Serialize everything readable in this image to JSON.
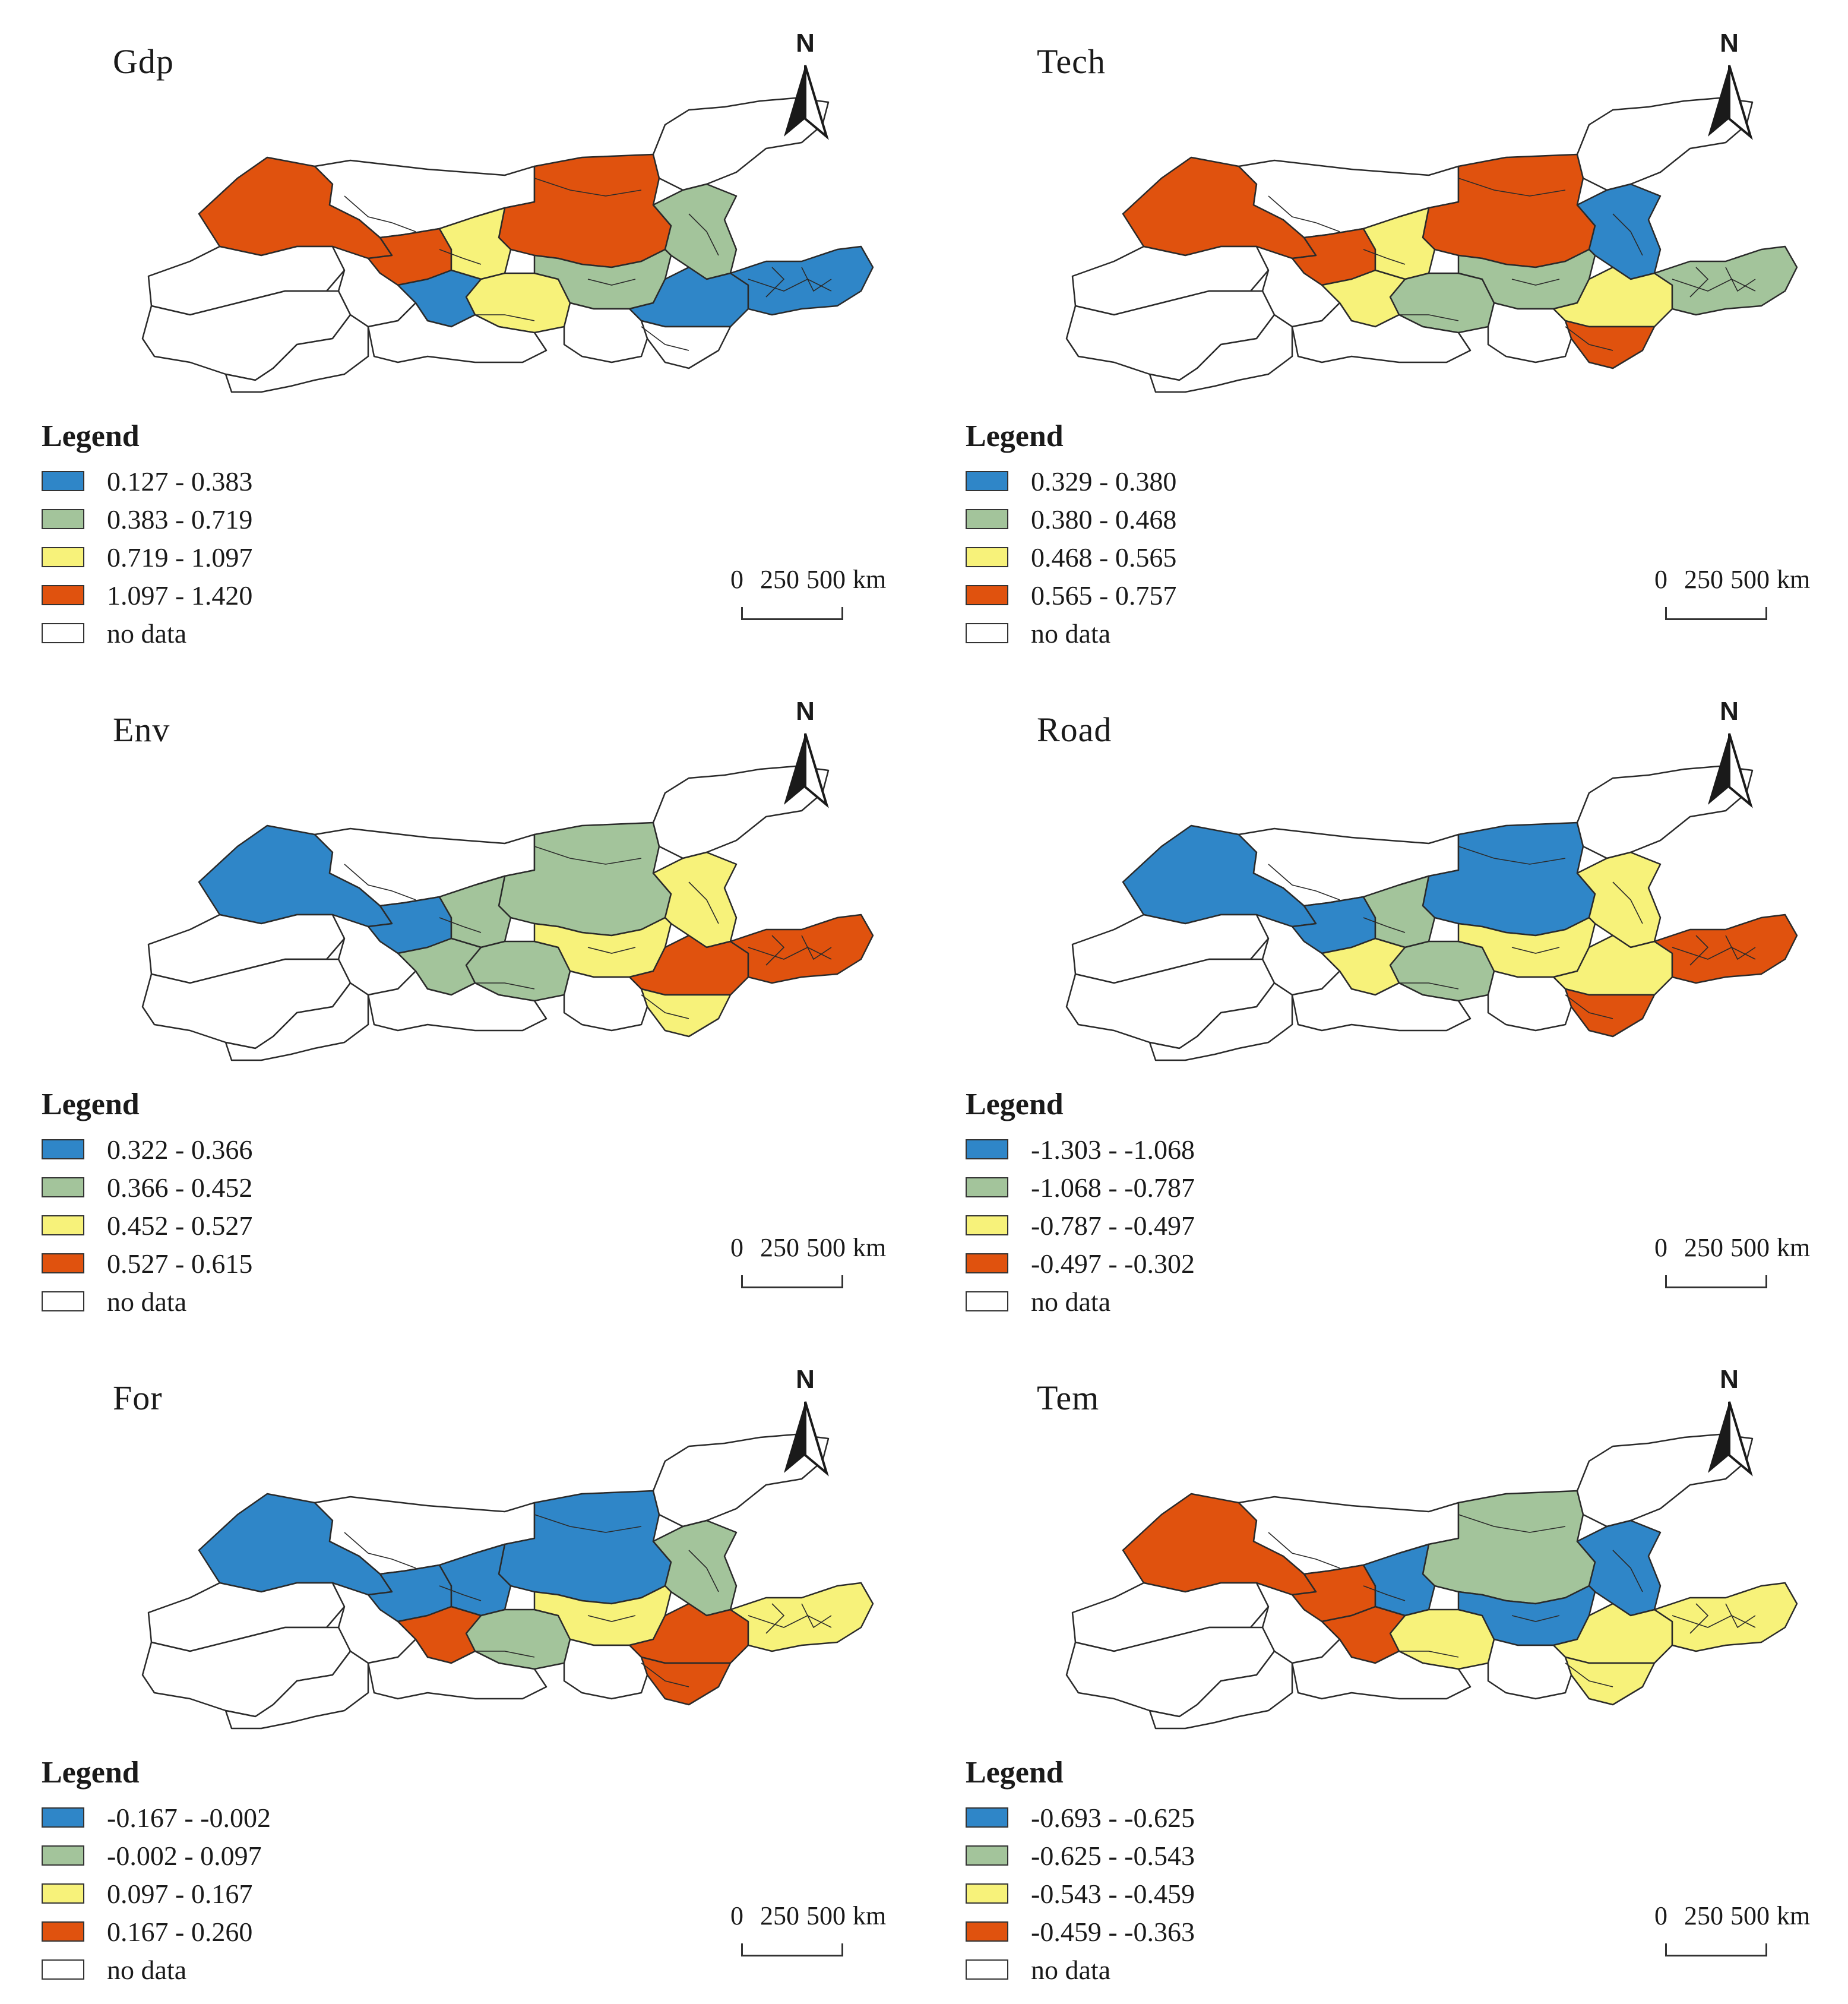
{
  "colors": {
    "class1": "#2f86c8",
    "class2": "#a3c49b",
    "class3": "#f7f27a",
    "class4": "#e0520e",
    "nodata": "#ffffff",
    "outline": "#2a2a2a"
  },
  "legend_title": "Legend",
  "nodata_label": "no data",
  "north_label": "N",
  "scalebar": {
    "ticks": [
      "0",
      "250",
      "500"
    ],
    "unit": "km"
  },
  "panels": [
    {
      "title": "Gdp",
      "classes": [
        "0.127 - 0.383",
        "0.383 - 0.719",
        "0.719 - 1.097",
        "1.097 - 1.420"
      ],
      "region_classes": {
        "A": 4,
        "B": 0,
        "C": 4,
        "D": 4,
        "E": 0,
        "F": 3,
        "G": 2,
        "H": 3,
        "I": 2,
        "J": 1,
        "K": 1,
        "L": 1,
        "M": 0,
        "N": 0,
        "O": 0,
        "P": 0,
        "Q": 0,
        "R": 0,
        "S": 0
      }
    },
    {
      "title": "Tech",
      "classes": [
        "0.329 - 0.380",
        "0.380 - 0.468",
        "0.468 - 0.565",
        "0.565 - 0.757"
      ],
      "region_classes": {
        "A": 4,
        "B": 0,
        "C": 4,
        "D": 4,
        "E": 0,
        "F": 3,
        "G": 1,
        "H": 2,
        "I": 2,
        "J": 3,
        "K": 3,
        "L": 2,
        "M": 4,
        "N": 0,
        "O": 0,
        "P": 0,
        "Q": 0,
        "R": 0,
        "S": 0
      }
    },
    {
      "title": "Env",
      "classes": [
        "0.322 - 0.366",
        "0.366 - 0.452",
        "0.452 - 0.527",
        "0.527 - 0.615"
      ],
      "region_classes": {
        "A": 1,
        "B": 0,
        "C": 1,
        "D": 2,
        "E": 0,
        "F": 2,
        "G": 3,
        "H": 2,
        "I": 3,
        "J": 4,
        "K": 2,
        "L": 4,
        "M": 3,
        "N": 0,
        "O": 0,
        "P": 0,
        "Q": 0,
        "R": 0,
        "S": 0
      }
    },
    {
      "title": "Road",
      "classes": [
        "-1.303 - -1.068",
        "-1.068 - -0.787",
        "-0.787 - -0.497",
        "-0.497 - -0.302"
      ],
      "region_classes": {
        "A": 1,
        "B": 0,
        "C": 1,
        "D": 1,
        "E": 0,
        "F": 2,
        "G": 3,
        "H": 2,
        "I": 3,
        "J": 3,
        "K": 3,
        "L": 4,
        "M": 4,
        "N": 0,
        "O": 0,
        "P": 0,
        "Q": 0,
        "R": 0,
        "S": 0
      }
    },
    {
      "title": "For",
      "classes": [
        "-0.167 - -0.002",
        "-0.002 - 0.097",
        "0.097 - 0.167",
        "0.167 - 0.260"
      ],
      "region_classes": {
        "A": 1,
        "B": 0,
        "C": 1,
        "D": 1,
        "E": 0,
        "F": 1,
        "G": 2,
        "H": 2,
        "I": 3,
        "J": 4,
        "K": 4,
        "L": 3,
        "M": 4,
        "N": 0,
        "O": 0,
        "P": 0,
        "Q": 0,
        "R": 0,
        "S": 0
      }
    },
    {
      "title": "Tem",
      "classes": [
        "-0.693 - -0.625",
        "-0.625 - -0.543",
        "-0.543 - -0.459",
        "-0.459 - -0.363"
      ],
      "region_classes": {
        "A": 4,
        "B": 0,
        "C": 4,
        "D": 2,
        "E": 0,
        "F": 1,
        "G": 1,
        "H": 3,
        "I": 1,
        "J": 3,
        "K": 4,
        "L": 3,
        "M": 3,
        "N": 0,
        "O": 0,
        "P": 0,
        "Q": 0,
        "R": 0,
        "S": 0
      }
    }
  ]
}
